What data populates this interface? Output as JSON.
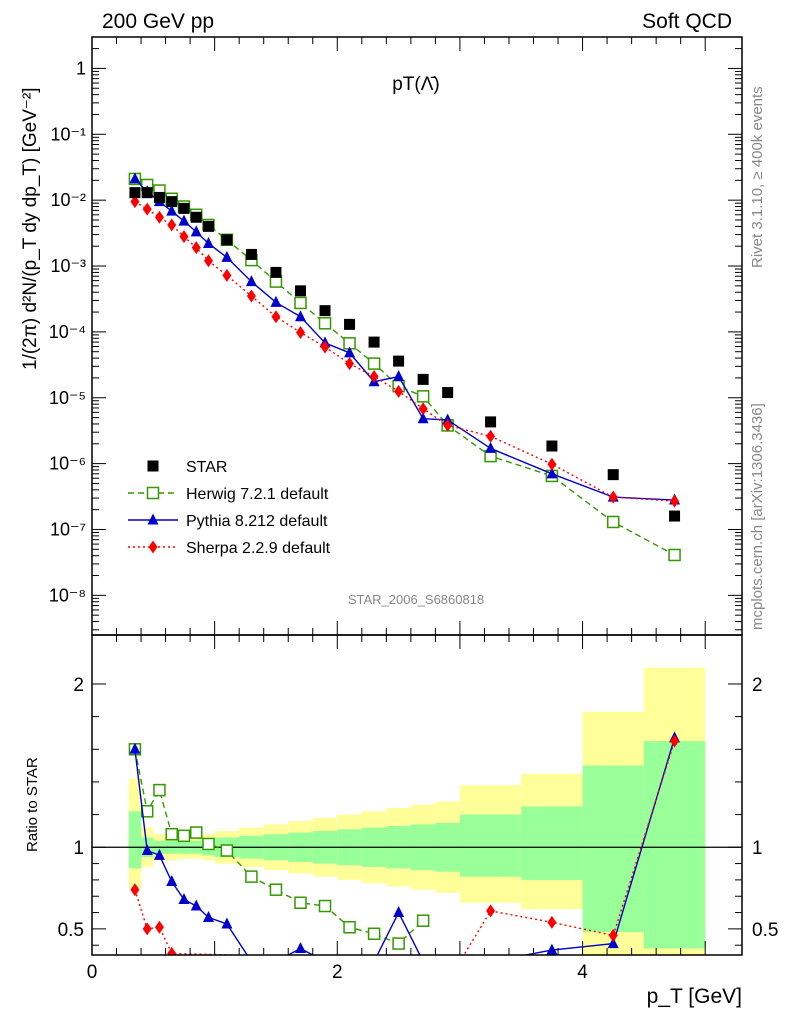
{
  "header": {
    "left": "200 GeV pp",
    "right": "Soft QCD",
    "side_top": "Rivet 3.1.10, ≥ 400k events",
    "side_bottom": "mcplots.cern.ch [arXiv:1306.3436]"
  },
  "chart_data": [
    {
      "type": "scatter",
      "title": "pT(Λ̄)",
      "watermark": "STAR_2006_S6860818",
      "ylabel": "1/(2π) d²N/(p_T dy dp_T) [GeV⁻²]",
      "xlabel": "",
      "x_scale": "linear",
      "y_scale": "log",
      "xlim": [
        0,
        5.3
      ],
      "ylim": [
        2.5e-09,
        3.0
      ],
      "y_tick_labels": [
        "10⁻⁸",
        "10⁻⁷",
        "10⁻⁶",
        "10⁻⁵",
        "10⁻⁴",
        "10⁻³",
        "10⁻²",
        "10⁻¹",
        "1"
      ],
      "legend_position": "bottom-left",
      "series": [
        {
          "name": "STAR",
          "marker": "filled-square",
          "color": "#000000",
          "x": [
            0.35,
            0.45,
            0.55,
            0.65,
            0.75,
            0.85,
            0.95,
            1.1,
            1.3,
            1.5,
            1.7,
            1.9,
            2.1,
            2.3,
            2.5,
            2.7,
            2.9,
            3.25,
            3.75,
            4.25,
            4.75
          ],
          "y": [
            0.013,
            0.013,
            0.011,
            0.0095,
            0.0075,
            0.0055,
            0.004,
            0.0025,
            0.0015,
            0.0008,
            0.00042,
            0.00021,
            0.00013,
            7e-05,
            3.6e-05,
            1.9e-05,
            1.2e-05,
            4.3e-06,
            1.85e-06,
            6.8e-07,
            1.6e-07
          ]
        },
        {
          "name": "Herwig 7.2.1 default",
          "marker": "open-square",
          "line": "dashed",
          "color": "#339900",
          "x": [
            0.35,
            0.45,
            0.55,
            0.65,
            0.75,
            0.85,
            0.95,
            1.1,
            1.3,
            1.5,
            1.7,
            1.9,
            2.1,
            2.3,
            2.5,
            2.7,
            2.9,
            3.25,
            3.75,
            4.25,
            4.75
          ],
          "y": [
            0.021,
            0.017,
            0.014,
            0.0105,
            0.008,
            0.006,
            0.0042,
            0.0025,
            0.00123,
            0.00058,
            0.000275,
            0.000135,
            6.7e-05,
            3.3e-05,
            1.5e-05,
            1.05e-05,
            3.8e-06,
            1.3e-06,
            6.5e-07,
            1.3e-07,
            4.1e-08
          ]
        },
        {
          "name": "Pythia 8.212 default",
          "marker": "filled-triangle",
          "line": "solid",
          "color": "#0000cc",
          "x": [
            0.35,
            0.45,
            0.55,
            0.65,
            0.75,
            0.85,
            0.95,
            1.1,
            1.3,
            1.5,
            1.7,
            1.9,
            2.1,
            2.3,
            2.5,
            2.7,
            2.9,
            3.25,
            3.75,
            4.25,
            4.75
          ],
          "y": [
            0.021,
            0.0135,
            0.0095,
            0.0068,
            0.0048,
            0.0033,
            0.0022,
            0.00135,
            0.00058,
            0.00028,
            0.00017,
            6.8e-05,
            4.8e-05,
            1.75e-05,
            2.1e-05,
            4.8e-06,
            4.6e-06,
            1.7e-06,
            7e-07,
            3.1e-07,
            2.8e-07
          ]
        },
        {
          "name": "Sherpa 2.2.9 default",
          "marker": "filled-diamond",
          "line": "dotted",
          "color": "#ff0000",
          "x": [
            0.35,
            0.45,
            0.55,
            0.65,
            0.75,
            0.85,
            0.95,
            1.1,
            1.3,
            1.5,
            1.7,
            1.9,
            2.1,
            2.3,
            2.5,
            2.7,
            2.9,
            3.25,
            3.75,
            4.25,
            4.75
          ],
          "y": [
            0.0095,
            0.0073,
            0.0055,
            0.0042,
            0.0028,
            0.0019,
            0.0012,
            0.00072,
            0.00035,
            0.00017,
            9.8e-05,
            5.9e-05,
            3.3e-05,
            2.1e-05,
            1.25e-05,
            6.8e-06,
            3.8e-06,
            2.6e-06,
            9.8e-07,
            3.1e-07,
            2.7e-07
          ]
        }
      ]
    },
    {
      "type": "line",
      "ylabel": "Ratio to STAR",
      "xlabel": "p_T [GeV]",
      "xlim": [
        0,
        5.3
      ],
      "ylim": [
        0.34,
        2.3
      ],
      "x_tick_labels": [
        "0",
        "2",
        "4"
      ],
      "y_tick_labels": [
        "0.5",
        "1",
        "2"
      ],
      "uncertainty_bands": {
        "x_edges": [
          0.3,
          0.4,
          0.5,
          0.6,
          0.7,
          0.8,
          0.9,
          1.0,
          1.2,
          1.4,
          1.6,
          1.8,
          2.0,
          2.2,
          2.4,
          2.6,
          2.8,
          3.0,
          3.5,
          4.0,
          4.5,
          5.0
        ],
        "inner": [
          [
            0.87,
            1.22
          ],
          [
            0.94,
            1.06
          ],
          [
            0.96,
            1.04
          ],
          [
            0.96,
            1.04
          ],
          [
            0.96,
            1.04
          ],
          [
            0.96,
            1.04
          ],
          [
            0.95,
            1.05
          ],
          [
            0.94,
            1.06
          ],
          [
            0.93,
            1.07
          ],
          [
            0.92,
            1.08
          ],
          [
            0.91,
            1.09
          ],
          [
            0.9,
            1.1
          ],
          [
            0.89,
            1.11
          ],
          [
            0.88,
            1.12
          ],
          [
            0.87,
            1.13
          ],
          [
            0.86,
            1.14
          ],
          [
            0.85,
            1.15
          ],
          [
            0.82,
            1.2
          ],
          [
            0.8,
            1.25
          ],
          [
            0.48,
            1.5
          ],
          [
            0.38,
            1.65
          ]
        ],
        "outer": [
          [
            0.75,
            1.42
          ],
          [
            0.88,
            1.12
          ],
          [
            0.92,
            1.08
          ],
          [
            0.92,
            1.07
          ],
          [
            0.93,
            1.07
          ],
          [
            0.93,
            1.07
          ],
          [
            0.92,
            1.08
          ],
          [
            0.9,
            1.1
          ],
          [
            0.88,
            1.12
          ],
          [
            0.86,
            1.14
          ],
          [
            0.84,
            1.16
          ],
          [
            0.82,
            1.18
          ],
          [
            0.8,
            1.2
          ],
          [
            0.78,
            1.22
          ],
          [
            0.76,
            1.24
          ],
          [
            0.74,
            1.26
          ],
          [
            0.72,
            1.28
          ],
          [
            0.66,
            1.38
          ],
          [
            0.62,
            1.45
          ],
          [
            0.34,
            1.83
          ],
          [
            0.34,
            2.1
          ]
        ]
      },
      "series": [
        {
          "name": "Herwig 7.2.1 default",
          "color": "#339900",
          "x": [
            0.35,
            0.45,
            0.55,
            0.65,
            0.75,
            0.85,
            0.95,
            1.1,
            1.3,
            1.5,
            1.7,
            1.9,
            2.1,
            2.3,
            2.5,
            2.7
          ],
          "y": [
            1.6,
            1.22,
            1.35,
            1.08,
            1.07,
            1.09,
            1.02,
            0.98,
            0.82,
            0.74,
            0.66,
            0.64,
            0.51,
            0.47,
            0.41,
            0.55
          ]
        },
        {
          "name": "Pythia 8.212 default",
          "color": "#0000cc",
          "x": [
            0.35,
            0.45,
            0.55,
            0.65,
            0.75,
            0.85,
            0.95,
            1.1,
            1.3,
            1.5,
            1.7,
            1.9,
            2.1,
            2.3,
            2.5,
            2.7,
            3.25,
            3.75,
            4.25,
            4.75
          ],
          "y": [
            1.6,
            0.98,
            0.95,
            0.79,
            0.68,
            0.64,
            0.57,
            0.53,
            0.3,
            0.3,
            0.38,
            0.3,
            0.3,
            0.3,
            0.6,
            0.3,
            0.3,
            0.37,
            0.41,
            1.67
          ]
        },
        {
          "name": "Sherpa 2.2.9 default",
          "color": "#ff0000",
          "x": [
            0.35,
            0.45,
            0.55,
            0.65,
            3.0,
            3.25,
            3.75,
            4.25,
            4.75
          ],
          "y": [
            0.74,
            0.5,
            0.51,
            0.35,
            0.3,
            0.61,
            0.54,
            0.46,
            1.65
          ]
        }
      ]
    }
  ]
}
